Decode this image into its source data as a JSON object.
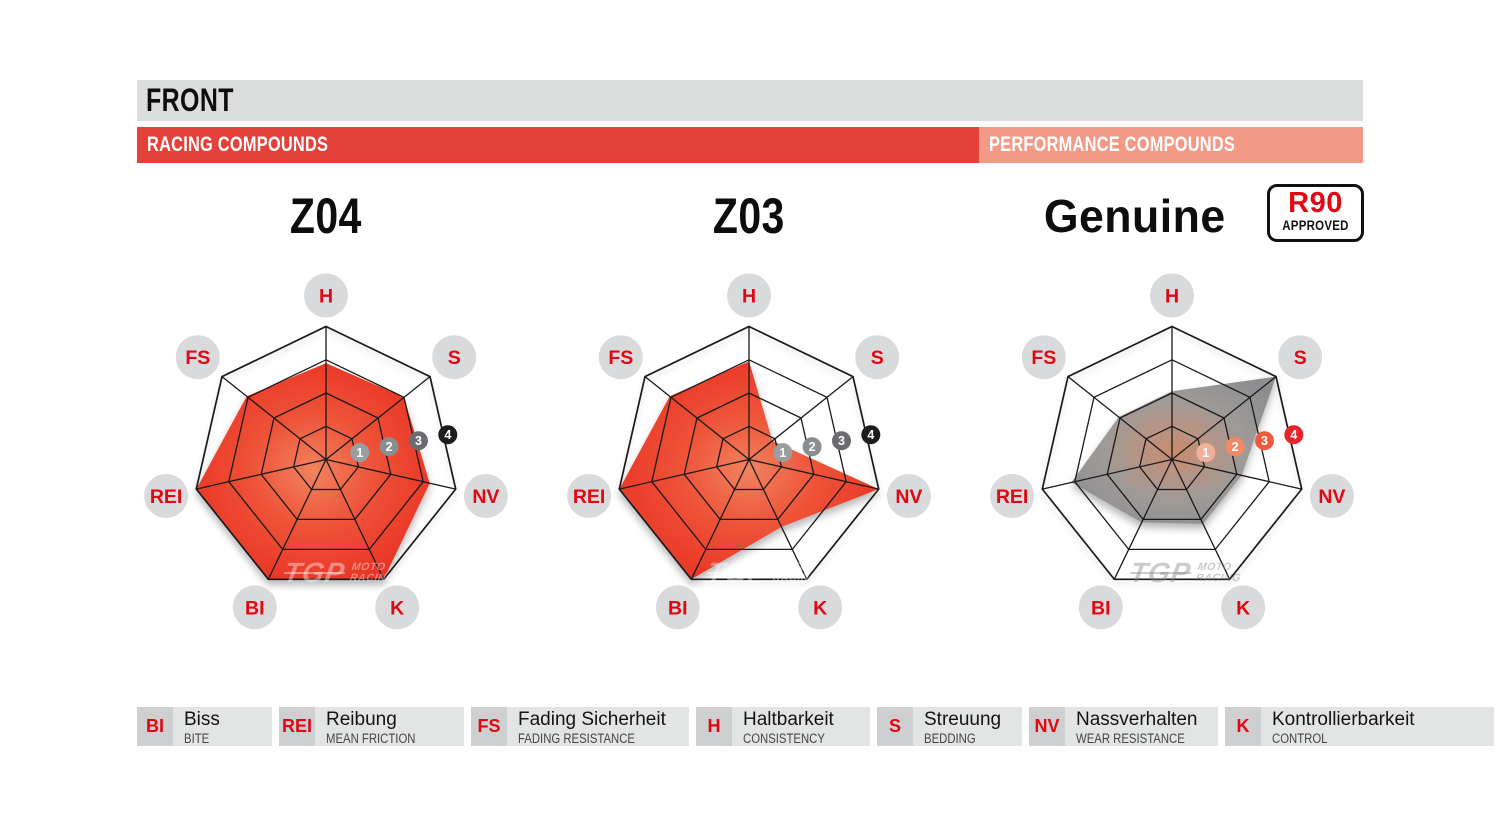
{
  "header": {
    "title": "FRONT",
    "sections": [
      {
        "label": "RACING COMPOUNDS",
        "color": "#e5413b"
      },
      {
        "label": "PERFORMANCE COMPOUNDS",
        "color": "#f29a86"
      }
    ]
  },
  "r90_badge": {
    "line1": "R90",
    "line2": "APPROVED"
  },
  "watermark": {
    "brand": "TGP",
    "moto": "MOTO",
    "racing": "RACING"
  },
  "scale_ticks": [
    "1",
    "2",
    "3",
    "4"
  ],
  "charts": [
    {
      "title": "Z04",
      "category": "racing",
      "values": {
        "H": 2.9,
        "S": 3.0,
        "NV": 3.2,
        "K": 4,
        "BI": 4,
        "REI": 4,
        "FS": 3.05
      }
    },
    {
      "title": "Z03",
      "category": "racing",
      "values": {
        "H": 2.95,
        "S": 0.9,
        "NV": 4,
        "K": 2.25,
        "BI": 4,
        "REI": 4,
        "FS": 3.05
      }
    },
    {
      "title": "Genuine",
      "category": "performance",
      "r90_approved": true,
      "values": {
        "H": 2.05,
        "S": 4,
        "NV": 2.15,
        "K": 2.15,
        "BI": 2.1,
        "REI": 3.1,
        "FS": 2.05
      }
    }
  ],
  "legend": [
    {
      "abbr": "BI",
      "de": "Biss",
      "en": "BITE"
    },
    {
      "abbr": "REI",
      "de": "Reibung",
      "en": "MEAN FRICTION"
    },
    {
      "abbr": "FS",
      "de": "Fading Sicherheit",
      "en": "FADING RESISTANCE"
    },
    {
      "abbr": "H",
      "de": "Haltbarkeit",
      "en": "CONSISTENCY"
    },
    {
      "abbr": "S",
      "de": "Streuung",
      "en": "BEDDING"
    },
    {
      "abbr": "NV",
      "de": "Nassverhalten",
      "en": "WEAR RESISTANCE"
    },
    {
      "abbr": "K",
      "de": "Kontrollierbarkeit",
      "en": "CONTROL"
    }
  ],
  "colors": {
    "header_bar": "#dcdddd",
    "racing_red": "#e5413b",
    "performance_salmon": "#f29a86",
    "grid_line": "#1a1a1a",
    "axis_label_circle": "#d9dadb",
    "axis_label_text": "#e30613",
    "racing_scale_badges": [
      "#9b9ea1",
      "#8b8e91",
      "#6a6c6f",
      "#1c1c1e"
    ],
    "performance_scale_badges": [
      "#f2b09b",
      "#f28a68",
      "#f05a3c",
      "#e5242c"
    ],
    "racing_gradient": [
      [
        "0%",
        "#f1835f"
      ],
      [
        "45%",
        "#ee5338"
      ],
      [
        "100%",
        "#e93123"
      ]
    ],
    "performance_gradient": [
      [
        "0%",
        "#c98a6f"
      ],
      [
        "25%",
        "#b99381"
      ],
      [
        "60%",
        "#9e9a98"
      ],
      [
        "100%",
        "#8e8e91"
      ]
    ]
  },
  "chart_data": {
    "type": "radar",
    "scale": {
      "min": 0,
      "max": 4,
      "rings": [
        1,
        2,
        3,
        4
      ]
    },
    "axes": [
      "H",
      "S",
      "NV",
      "K",
      "BI",
      "REI",
      "FS"
    ],
    "axes_clockwise_from_top": true,
    "series": [
      {
        "name": "Z04",
        "values": [
          2.9,
          3.0,
          3.2,
          4,
          4,
          4,
          3.05
        ]
      },
      {
        "name": "Z03",
        "values": [
          2.95,
          0.9,
          4,
          2.25,
          4,
          4,
          3.05
        ]
      },
      {
        "name": "Genuine",
        "values": [
          2.05,
          4,
          2.15,
          2.15,
          2.1,
          3.1,
          2.05
        ]
      }
    ],
    "legend_position": "bottom"
  }
}
